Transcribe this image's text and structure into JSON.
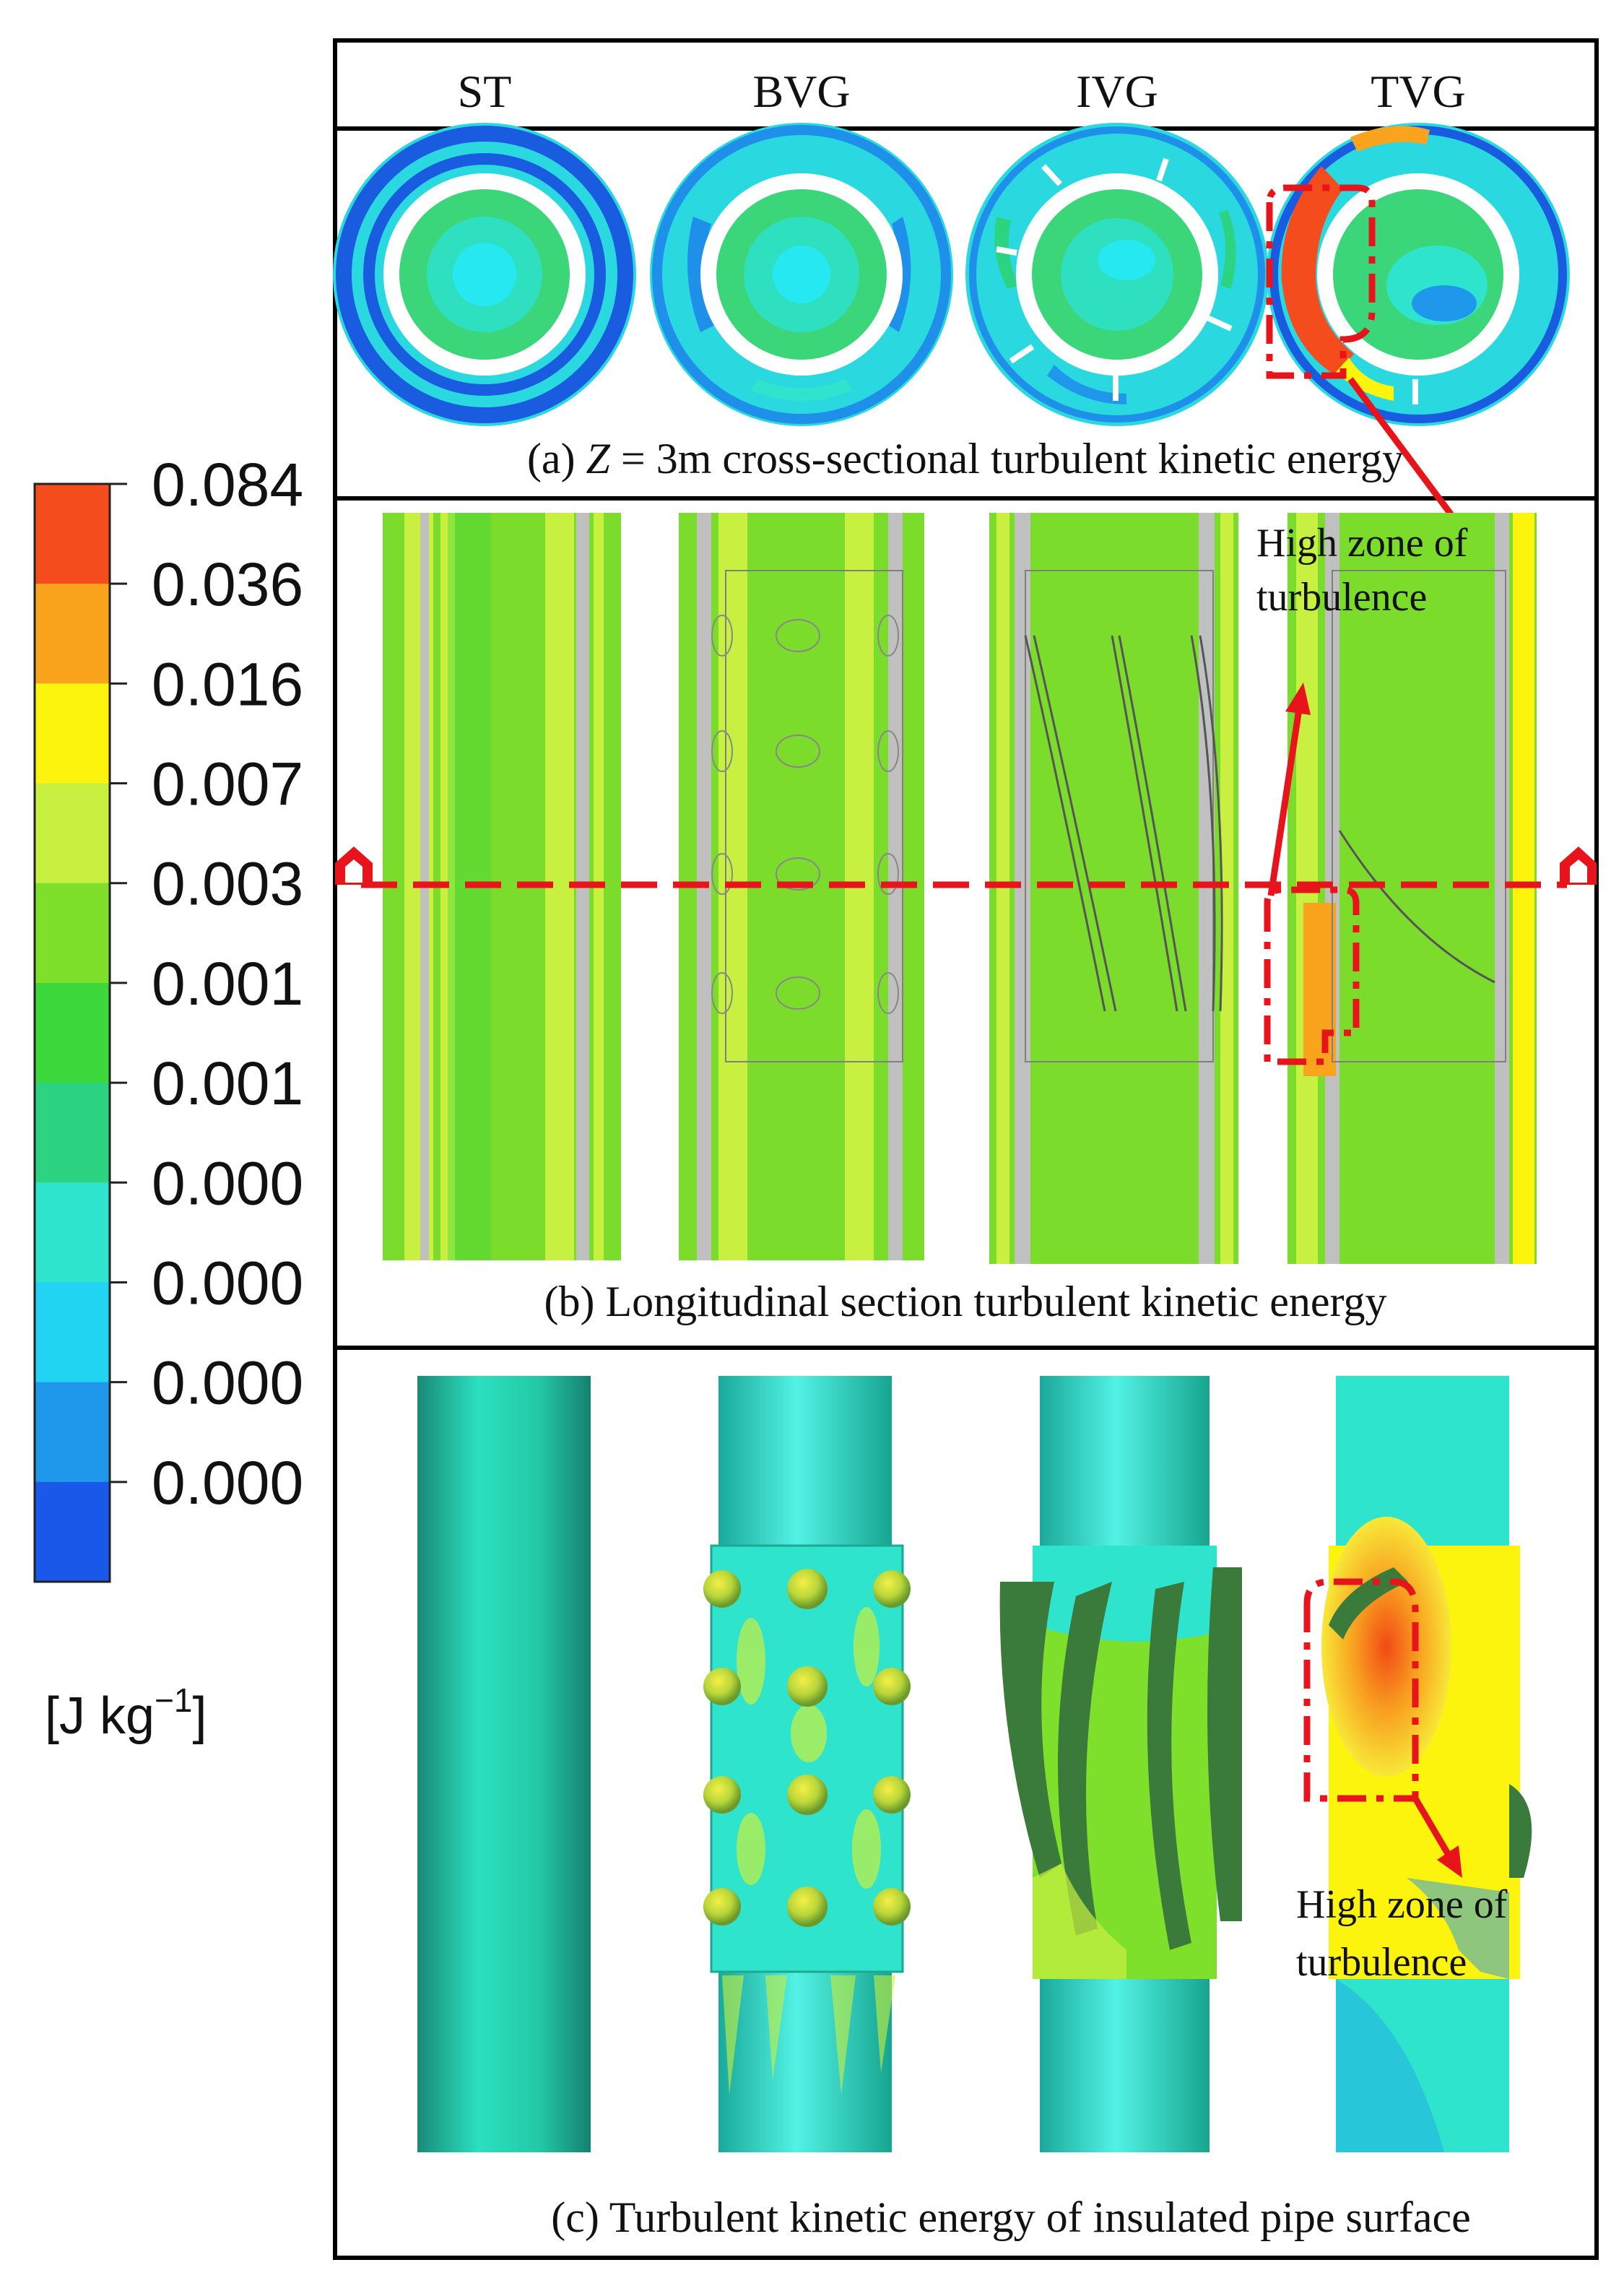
{
  "headers": [
    "ST",
    "BVG",
    "IVG",
    "TVG"
  ],
  "captions": {
    "a_prefix": "(a) ",
    "a_var": "Z",
    "a_rest": " = 3m cross-sectional turbulent kinetic energy",
    "b": "(b)  Longitudinal section turbulent kinetic energy",
    "c": "(c)  Turbulent kinetic energy of insulated pipe surface"
  },
  "annotations": {
    "panel_b_line1": "High zone of",
    "panel_b_line2": "turbulence",
    "panel_c_line1": "High zone of",
    "panel_c_line2": "turbulence"
  },
  "legend": {
    "labels": [
      "0.084",
      "0.036",
      "0.016",
      "0.007",
      "0.003",
      "0.001",
      "0.001",
      "0.000",
      "0.000",
      "0.000",
      "0.000"
    ],
    "colors": [
      "#f44c1c",
      "#f9a41c",
      "#fdf40e",
      "#c8f040",
      "#7fe02c",
      "#3cd83c",
      "#2cd482",
      "#2ee4cc",
      "#22d4f4",
      "#1f98ec",
      "#1a58ea"
    ],
    "unit_base": "[J kg",
    "unit_exp": "−1",
    "unit_close": "]"
  }
}
